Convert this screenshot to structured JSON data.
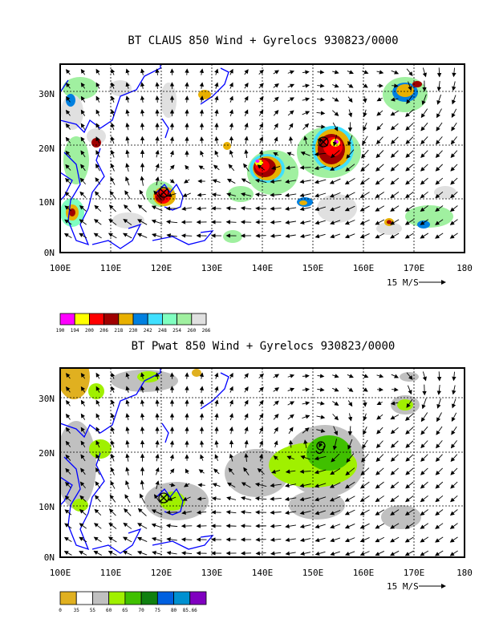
{
  "chart_data": [
    {
      "type": "heatmap",
      "title": "BT CLAUS 850 Wind + Gyrelocs 930823/0000",
      "x_ticks": [
        "100E",
        "110E",
        "120E",
        "130E",
        "140E",
        "150E",
        "160E",
        "170E",
        "180"
      ],
      "y_ticks": [
        "0N",
        "10N",
        "20N",
        "30N"
      ],
      "xlim": [
        100,
        180
      ],
      "ylim": [
        0,
        35
      ],
      "grid": true,
      "vector_ref_label": "15 M/S",
      "colorbar": {
        "labels": [
          "190",
          "194",
          "200",
          "206",
          "218",
          "230",
          "242",
          "248",
          "254",
          "260",
          "266"
        ],
        "colors": [
          "#ff00ff",
          "#ffff00",
          "#ff0000",
          "#a00000",
          "#e8b000",
          "#0080e0",
          "#40e0ff",
          "#80ffc0",
          "#a0f0a0",
          "#e0e0e0"
        ]
      },
      "gyre_markers": [
        {
          "lon": 120.5,
          "lat": 11.5,
          "symbol": "x"
        },
        {
          "lon": 152.5,
          "lat": 20.5,
          "symbol": "x"
        }
      ]
    },
    {
      "type": "heatmap",
      "title": "BT Pwat 850 Wind + Gyrelocs 930823/0000",
      "x_ticks": [
        "100E",
        "110E",
        "120E",
        "130E",
        "140E",
        "150E",
        "160E",
        "170E",
        "180"
      ],
      "y_ticks": [
        "0N",
        "10N",
        "20N",
        "30N"
      ],
      "xlim": [
        100,
        180
      ],
      "ylim": [
        0,
        35
      ],
      "grid": true,
      "vector_ref_label": "15 M/S",
      "colorbar": {
        "labels": [
          "0",
          "35",
          "55",
          "60",
          "65",
          "70",
          "75",
          "80",
          "85.66"
        ],
        "colors": [
          "#e0b020",
          "#ffffff",
          "#c0c0c0",
          "#a0f000",
          "#40c000",
          "#108010",
          "#0060e0",
          "#0090d0",
          "#8000c0"
        ]
      },
      "gyre_markers": [
        {
          "lon": 120.5,
          "lat": 11.5,
          "symbol": "x"
        },
        {
          "lon": 152.5,
          "lat": 20.5,
          "symbol": "9"
        }
      ]
    }
  ]
}
